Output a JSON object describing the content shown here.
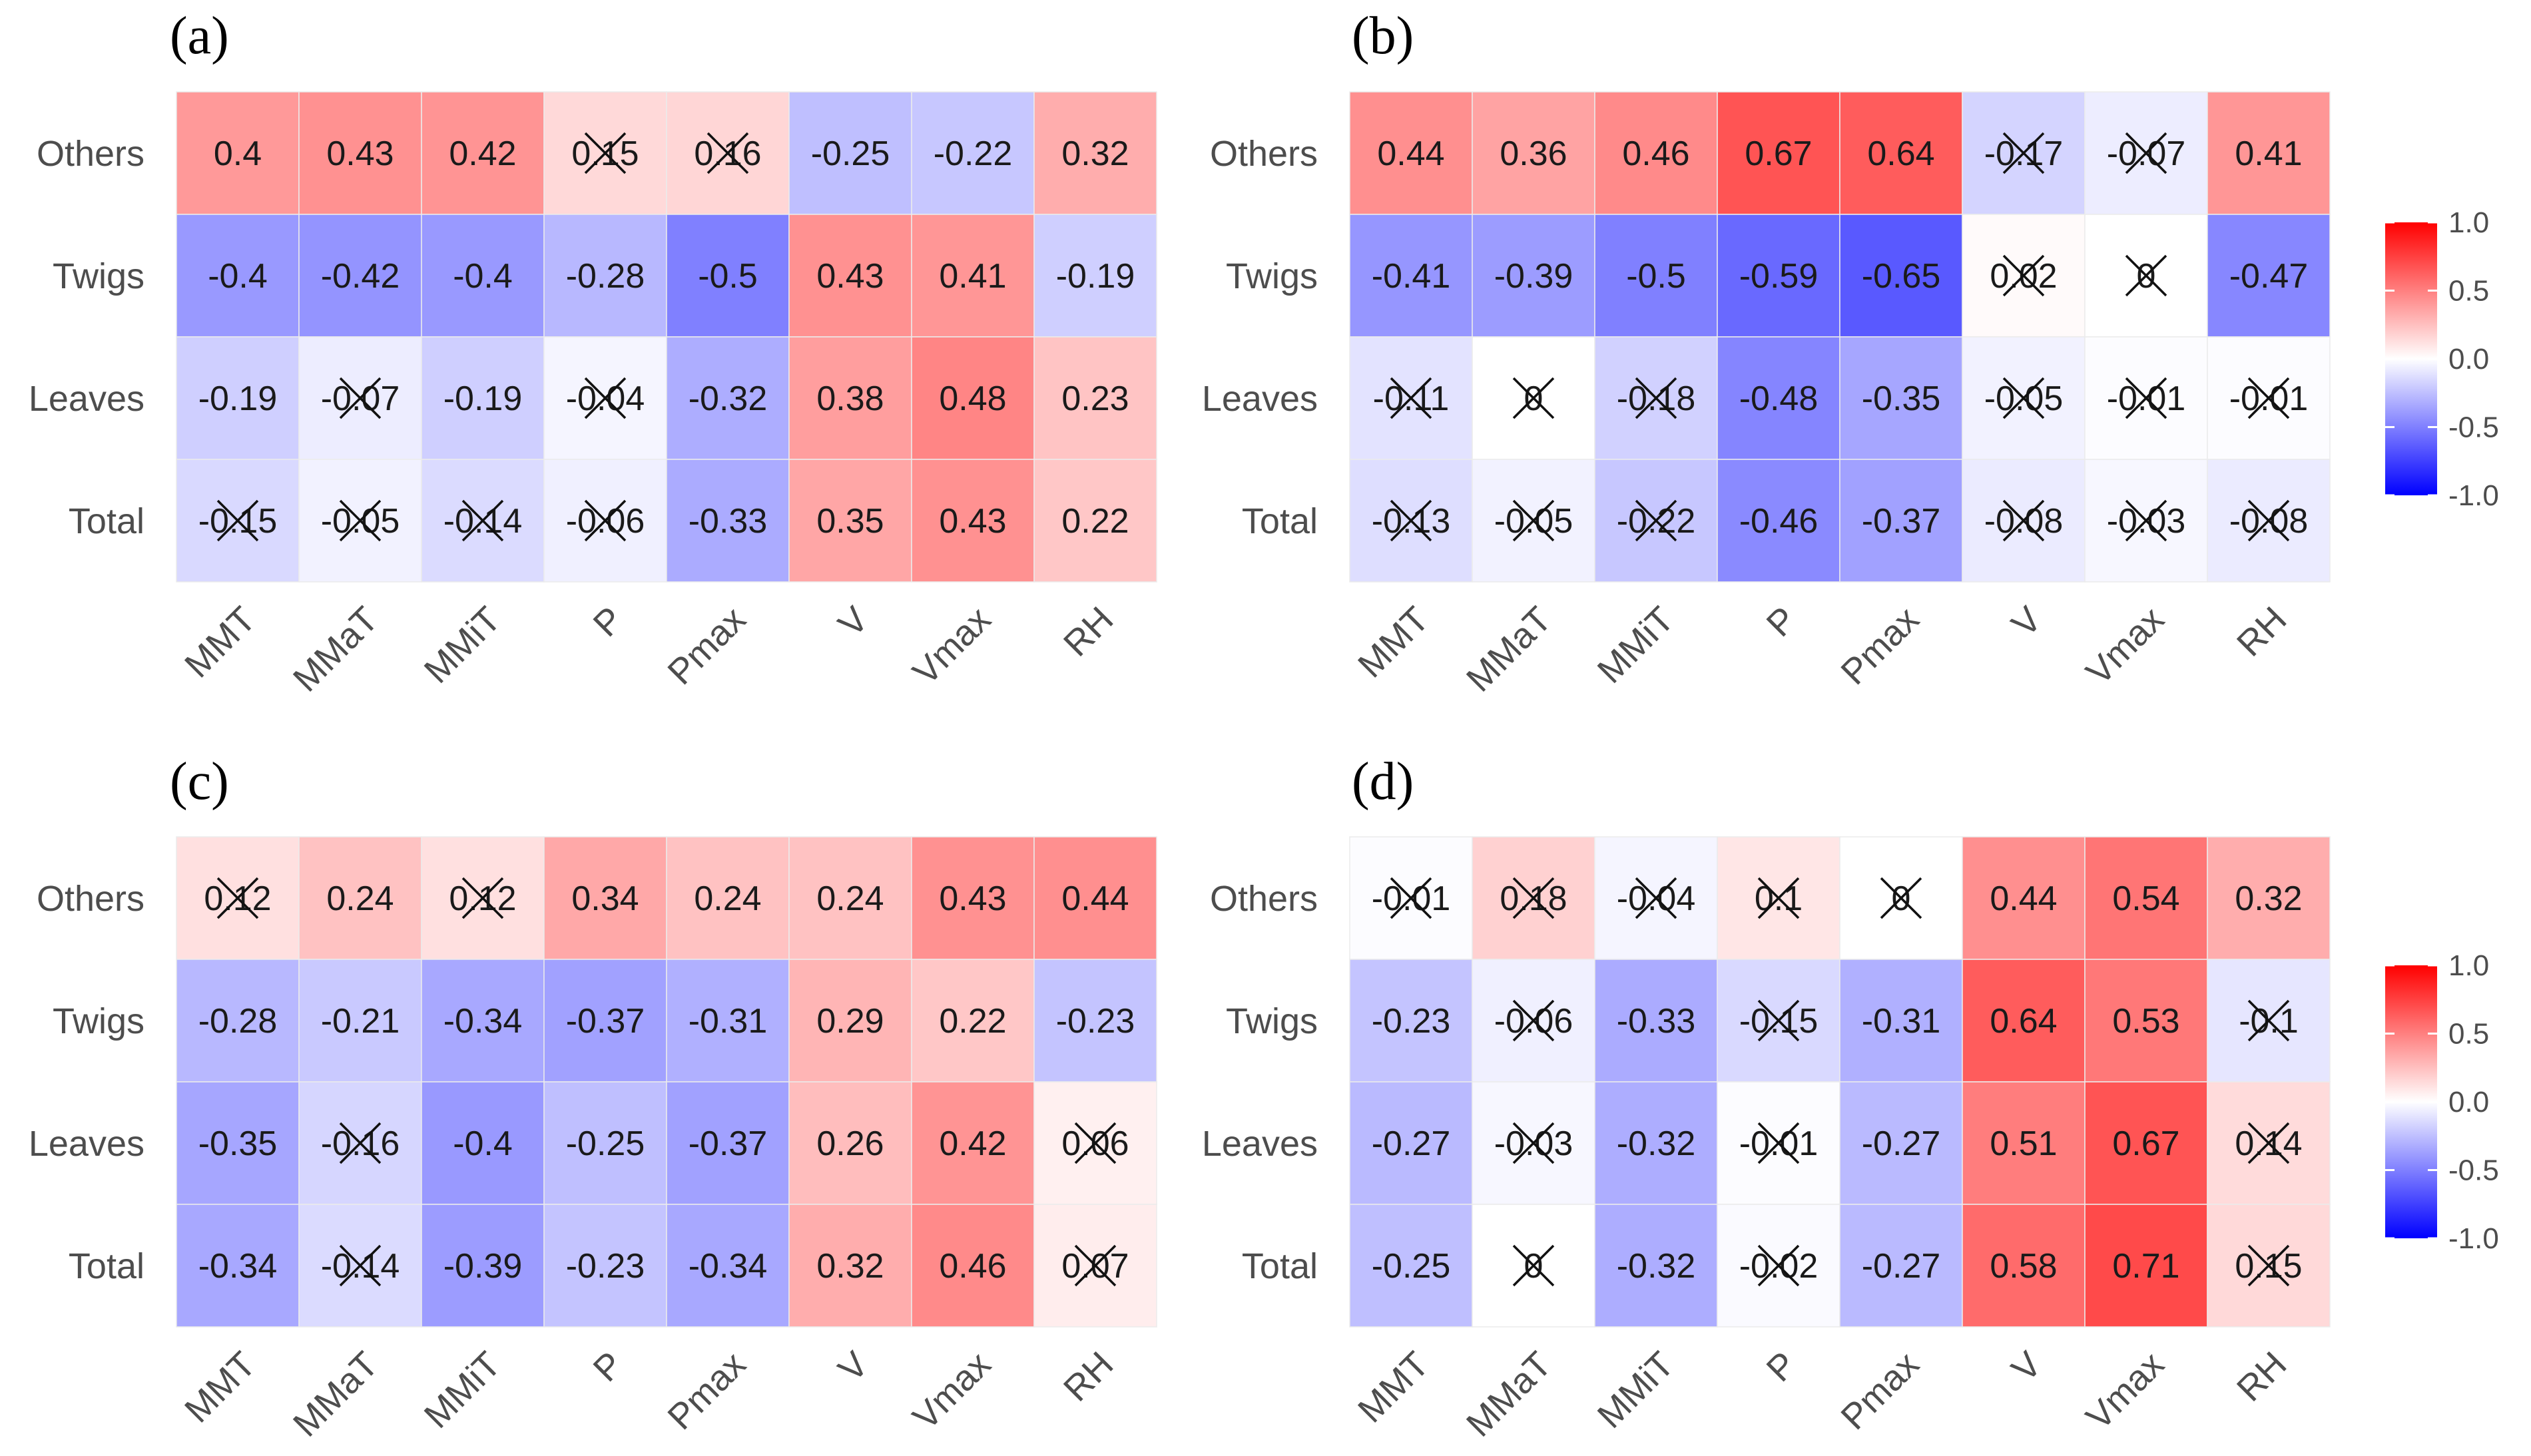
{
  "chart_data": [
    {
      "type": "heatmap",
      "panel_label": "(a)",
      "rows": [
        "Others",
        "Twigs",
        "Leaves",
        "Total"
      ],
      "columns": [
        "MMT",
        "MMaT",
        "MMiT",
        "P",
        "Pmax",
        "V",
        "Vmax",
        "RH"
      ],
      "values": [
        [
          0.4,
          0.43,
          0.42,
          0.15,
          0.16,
          -0.25,
          -0.22,
          0.32
        ],
        [
          -0.4,
          -0.42,
          -0.4,
          -0.28,
          -0.5,
          0.43,
          0.41,
          -0.19
        ],
        [
          -0.19,
          -0.07,
          -0.19,
          -0.04,
          -0.32,
          0.38,
          0.48,
          0.23
        ],
        [
          -0.15,
          -0.05,
          -0.14,
          -0.06,
          -0.33,
          0.35,
          0.43,
          0.22
        ]
      ],
      "labels": [
        [
          "0.4",
          "0.43",
          "0.42",
          "0.15",
          "0.16",
          "-0.25",
          "-0.22",
          "0.32"
        ],
        [
          "-0.4",
          "-0.42",
          "-0.4",
          "-0.28",
          "-0.5",
          "0.43",
          "0.41",
          "-0.19"
        ],
        [
          "-0.19",
          "-0.07",
          "-0.19",
          "-0.04",
          "-0.32",
          "0.38",
          "0.48",
          "0.23"
        ],
        [
          "-0.15",
          "-0.05",
          "-0.14",
          "-0.06",
          "-0.33",
          "0.35",
          "0.43",
          "0.22"
        ]
      ],
      "crossed": [
        [
          false,
          false,
          false,
          true,
          true,
          false,
          false,
          false
        ],
        [
          false,
          false,
          false,
          false,
          false,
          false,
          false,
          false
        ],
        [
          false,
          true,
          false,
          true,
          false,
          false,
          false,
          false
        ],
        [
          true,
          true,
          true,
          true,
          false,
          false,
          false,
          false
        ]
      ]
    },
    {
      "type": "heatmap",
      "panel_label": "(b)",
      "rows": [
        "Others",
        "Twigs",
        "Leaves",
        "Total"
      ],
      "columns": [
        "MMT",
        "MMaT",
        "MMiT",
        "P",
        "Pmax",
        "V",
        "Vmax",
        "RH"
      ],
      "values": [
        [
          0.44,
          0.36,
          0.46,
          0.67,
          0.64,
          -0.17,
          -0.07,
          0.41
        ],
        [
          -0.41,
          -0.39,
          -0.5,
          -0.59,
          -0.65,
          0.02,
          0,
          -0.47
        ],
        [
          -0.11,
          0,
          -0.18,
          -0.48,
          -0.35,
          -0.05,
          -0.01,
          -0.01
        ],
        [
          -0.13,
          -0.05,
          -0.22,
          -0.46,
          -0.37,
          -0.08,
          -0.03,
          -0.08
        ]
      ],
      "labels": [
        [
          "0.44",
          "0.36",
          "0.46",
          "0.67",
          "0.64",
          "-0.17",
          "-0.07",
          "0.41"
        ],
        [
          "-0.41",
          "-0.39",
          "-0.5",
          "-0.59",
          "-0.65",
          "0.02",
          "0",
          "-0.47"
        ],
        [
          "-0.11",
          "0",
          "-0.18",
          "-0.48",
          "-0.35",
          "-0.05",
          "-0.01",
          "-0.01"
        ],
        [
          "-0.13",
          "-0.05",
          "-0.22",
          "-0.46",
          "-0.37",
          "-0.08",
          "-0.03",
          "-0.08"
        ]
      ],
      "crossed": [
        [
          false,
          false,
          false,
          false,
          false,
          true,
          true,
          false
        ],
        [
          false,
          false,
          false,
          false,
          false,
          true,
          true,
          false
        ],
        [
          true,
          true,
          true,
          false,
          false,
          true,
          true,
          true
        ],
        [
          true,
          true,
          true,
          false,
          false,
          true,
          true,
          true
        ]
      ]
    },
    {
      "type": "heatmap",
      "panel_label": "(c)",
      "rows": [
        "Others",
        "Twigs",
        "Leaves",
        "Total"
      ],
      "columns": [
        "MMT",
        "MMaT",
        "MMiT",
        "P",
        "Pmax",
        "V",
        "Vmax",
        "RH"
      ],
      "values": [
        [
          0.12,
          0.24,
          0.12,
          0.34,
          0.24,
          0.24,
          0.43,
          0.44
        ],
        [
          -0.28,
          -0.21,
          -0.34,
          -0.37,
          -0.31,
          0.29,
          0.22,
          -0.23
        ],
        [
          -0.35,
          -0.16,
          -0.4,
          -0.25,
          -0.37,
          0.26,
          0.42,
          0.06
        ],
        [
          -0.34,
          -0.14,
          -0.39,
          -0.23,
          -0.34,
          0.32,
          0.46,
          0.07
        ]
      ],
      "labels": [
        [
          "0.12",
          "0.24",
          "0.12",
          "0.34",
          "0.24",
          "0.24",
          "0.43",
          "0.44"
        ],
        [
          "-0.28",
          "-0.21",
          "-0.34",
          "-0.37",
          "-0.31",
          "0.29",
          "0.22",
          "-0.23"
        ],
        [
          "-0.35",
          "-0.16",
          "-0.4",
          "-0.25",
          "-0.37",
          "0.26",
          "0.42",
          "0.06"
        ],
        [
          "-0.34",
          "-0.14",
          "-0.39",
          "-0.23",
          "-0.34",
          "0.32",
          "0.46",
          "0.07"
        ]
      ],
      "crossed": [
        [
          true,
          false,
          true,
          false,
          false,
          false,
          false,
          false
        ],
        [
          false,
          false,
          false,
          false,
          false,
          false,
          false,
          false
        ],
        [
          false,
          true,
          false,
          false,
          false,
          false,
          false,
          true
        ],
        [
          false,
          true,
          false,
          false,
          false,
          false,
          false,
          true
        ]
      ]
    },
    {
      "type": "heatmap",
      "panel_label": "(d)",
      "rows": [
        "Others",
        "Twigs",
        "Leaves",
        "Total"
      ],
      "columns": [
        "MMT",
        "MMaT",
        "MMiT",
        "P",
        "Pmax",
        "V",
        "Vmax",
        "RH"
      ],
      "values": [
        [
          -0.01,
          0.18,
          -0.04,
          0.1,
          0,
          0.44,
          0.54,
          0.32
        ],
        [
          -0.23,
          -0.06,
          -0.33,
          -0.15,
          -0.31,
          0.64,
          0.53,
          -0.1
        ],
        [
          -0.27,
          -0.03,
          -0.32,
          -0.01,
          -0.27,
          0.51,
          0.67,
          0.14
        ],
        [
          -0.25,
          0,
          -0.32,
          -0.02,
          -0.27,
          0.58,
          0.71,
          0.15
        ]
      ],
      "labels": [
        [
          "-0.01",
          "0.18",
          "-0.04",
          "0.1",
          "0",
          "0.44",
          "0.54",
          "0.32"
        ],
        [
          "-0.23",
          "-0.06",
          "-0.33",
          "-0.15",
          "-0.31",
          "0.64",
          "0.53",
          "-0.1"
        ],
        [
          "-0.27",
          "-0.03",
          "-0.32",
          "-0.01",
          "-0.27",
          "0.51",
          "0.67",
          "0.14"
        ],
        [
          "-0.25",
          "0",
          "-0.32",
          "-0.02",
          "-0.27",
          "0.58",
          "0.71",
          "0.15"
        ]
      ],
      "crossed": [
        [
          true,
          true,
          true,
          true,
          true,
          false,
          false,
          false
        ],
        [
          false,
          true,
          false,
          true,
          false,
          false,
          false,
          true
        ],
        [
          false,
          true,
          false,
          true,
          false,
          false,
          false,
          true
        ],
        [
          false,
          true,
          false,
          true,
          false,
          false,
          false,
          true
        ]
      ]
    }
  ],
  "legend": {
    "range": [
      -1.0,
      1.0
    ],
    "tick_labels": [
      "1.0",
      "0.5",
      "0.0",
      "-0.5",
      "-1.0"
    ],
    "colors": {
      "low": "#0000ff",
      "mid": "#ffffff",
      "high": "#ff0000"
    }
  }
}
